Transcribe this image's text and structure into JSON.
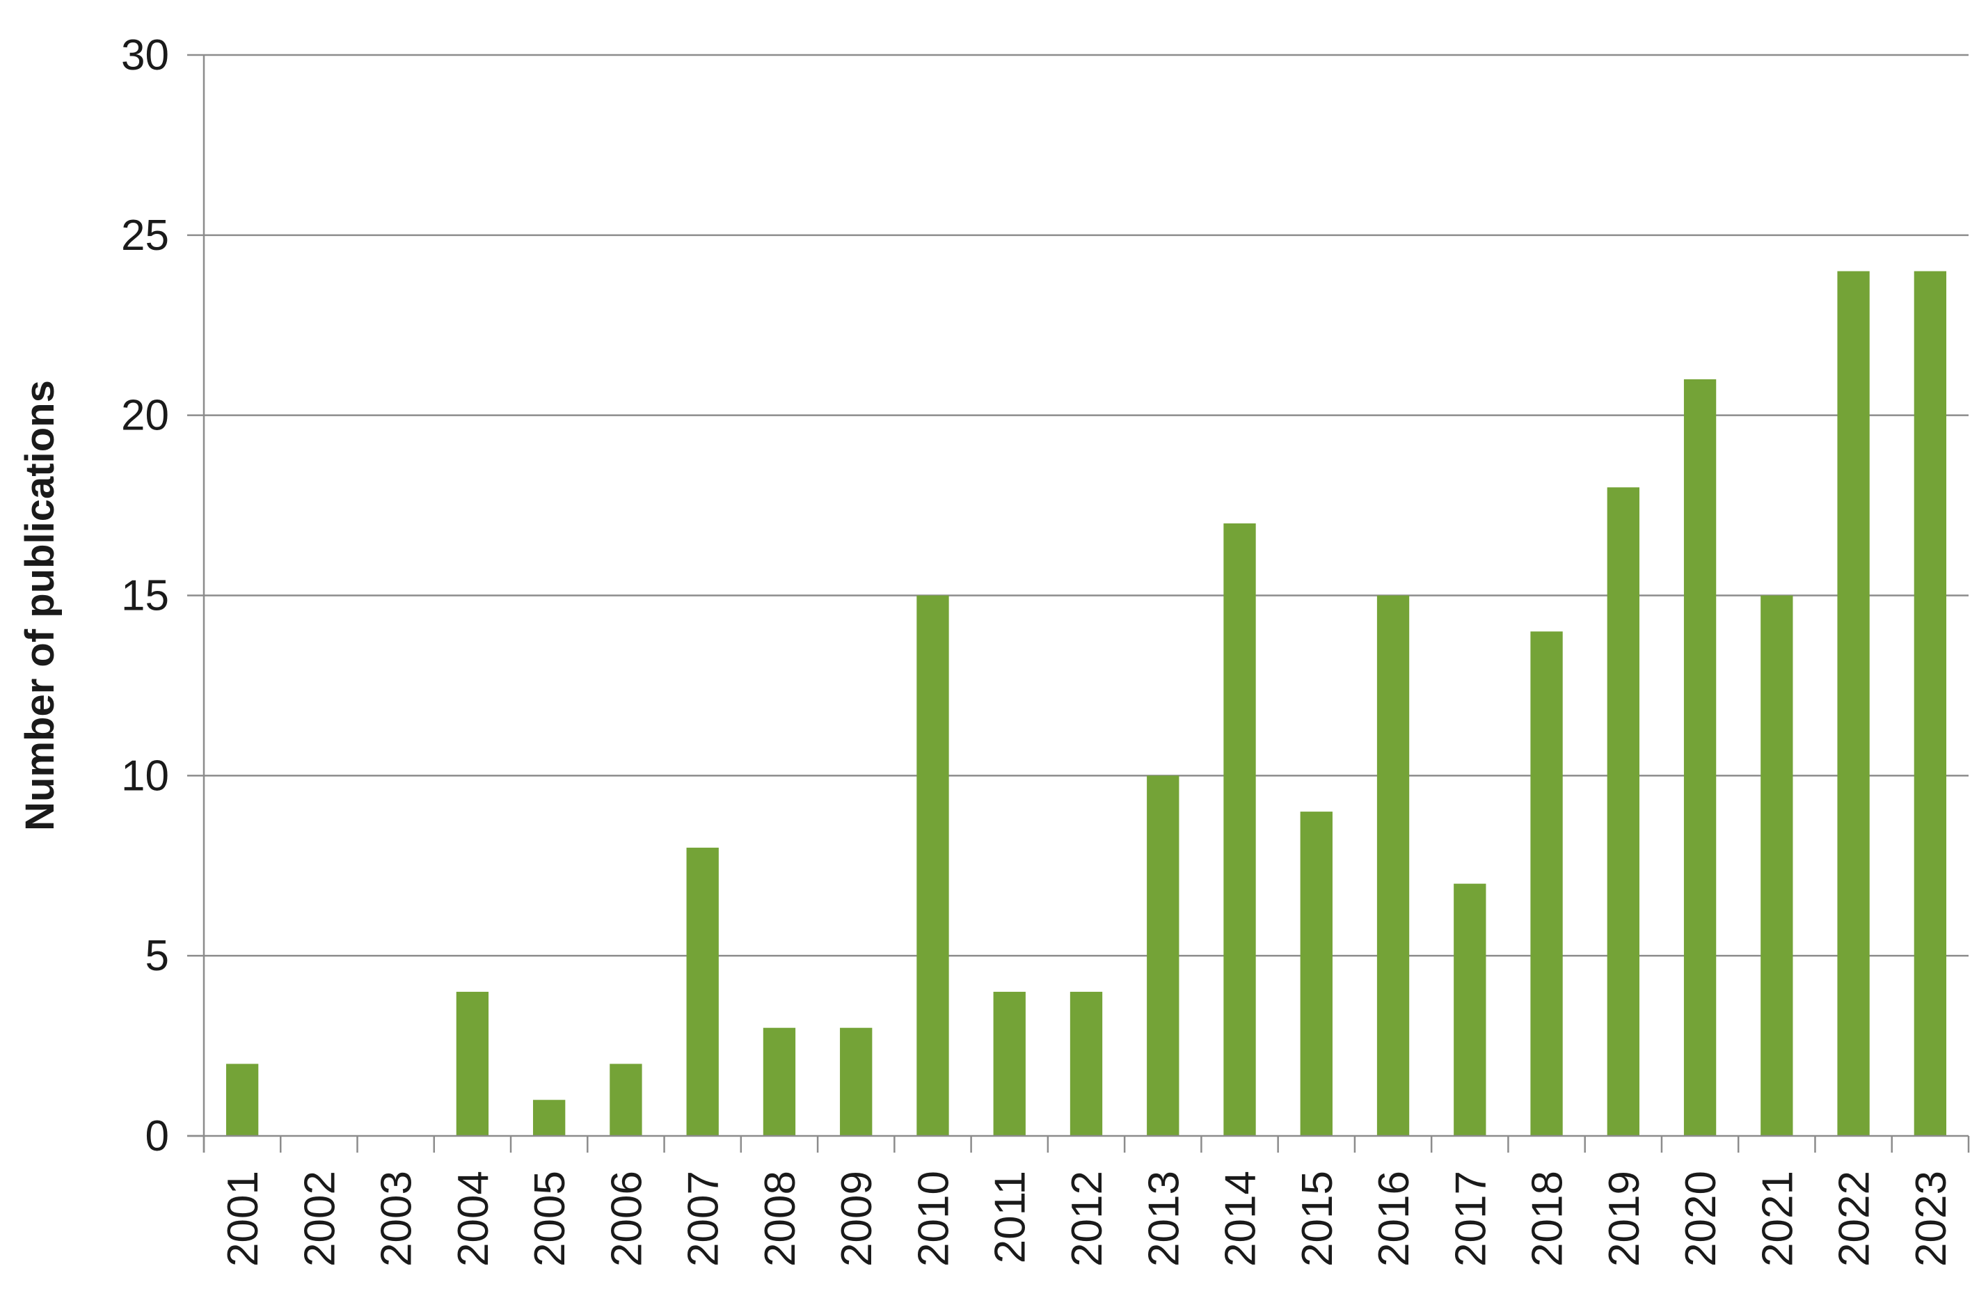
{
  "chart_data": {
    "type": "bar",
    "title": "",
    "xlabel": "",
    "ylabel": "Number of publications",
    "categories": [
      "2001",
      "2002",
      "2003",
      "2004",
      "2005",
      "2006",
      "2007",
      "2008",
      "2009",
      "2010",
      "2011",
      "2012",
      "2013",
      "2014",
      "2015",
      "2016",
      "2017",
      "2018",
      "2019",
      "2020",
      "2021",
      "2022",
      "2023"
    ],
    "series": [
      {
        "values": [
          2,
          0,
          0,
          4,
          1,
          2,
          8,
          3,
          3,
          15,
          4,
          4,
          10,
          17,
          9,
          15,
          7,
          14,
          18,
          21,
          15,
          24,
          24
        ],
        "color": "#74a337"
      }
    ],
    "ylim": [
      0,
      30
    ],
    "yticks": [
      0,
      5,
      10,
      15,
      20,
      25,
      30
    ],
    "grid": true,
    "legend": "none"
  }
}
